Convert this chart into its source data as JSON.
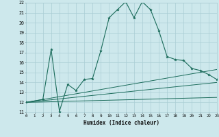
{
  "xlabel": "Humidex (Indice chaleur)",
  "bg_color": "#cde8ec",
  "grid_color": "#aacdd4",
  "line_color": "#1a6b5a",
  "x_min": 0,
  "x_max": 23,
  "y_min": 11,
  "y_max": 22,
  "main_line_x": [
    0,
    2,
    3,
    4,
    5,
    6,
    7,
    8,
    9,
    10,
    11,
    12,
    13,
    14,
    15,
    16,
    17,
    18,
    19,
    20,
    21,
    22,
    23
  ],
  "main_line_y": [
    12,
    12.3,
    17.3,
    11.1,
    13.8,
    13.2,
    14.3,
    14.4,
    17.2,
    20.5,
    21.3,
    22.1,
    20.5,
    22.1,
    21.3,
    19.2,
    16.6,
    16.3,
    16.2,
    15.4,
    15.2,
    14.8,
    14.3
  ],
  "line2_x": [
    0,
    23
  ],
  "line2_y": [
    12.0,
    15.3
  ],
  "line3_x": [
    0,
    23
  ],
  "line3_y": [
    12.0,
    14.0
  ],
  "line4_x": [
    0,
    23
  ],
  "line4_y": [
    12.0,
    12.5
  ]
}
